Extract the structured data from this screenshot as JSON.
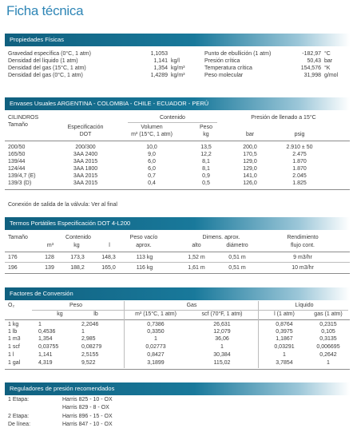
{
  "page_title": "Ficha técnica",
  "props": {
    "header": "Propiedades Físicas",
    "left": [
      {
        "label": "Gravedad específica (0°C, 1 atm)",
        "value": "1,1053",
        "unit": ""
      },
      {
        "label": "Densidad del líquido (1 atm)",
        "value": "1,141",
        "unit": "kg/l"
      },
      {
        "label": "Densidad del gas (15°C, 1 atm)",
        "value": "1,354",
        "unit": "kg/m³"
      },
      {
        "label": "Densidad del gas (0°C, 1 atm)",
        "value": "1,4289",
        "unit": "kg/m³"
      }
    ],
    "right": [
      {
        "label": "Punto de ebullición (1 atm)",
        "value": "-182,97",
        "unit": "°C"
      },
      {
        "label": "Presión crítica",
        "value": "50,43",
        "unit": "bar"
      },
      {
        "label": "Temperatura crítica",
        "value": "154,576",
        "unit": "°K"
      },
      {
        "label": "Peso molecular",
        "value": "31,998",
        "unit": "g/mol"
      }
    ]
  },
  "envases": {
    "header": "Envases Usuales ARGENTINA - COLOMBIA - CHILE - ECUADOR - PERÚ",
    "h_cilindros": "CILINDROS",
    "h_contenido": "Contenido",
    "h_presion": "Presión de llenado a 15°C",
    "h_tamano": "Tamaño",
    "h_espec": "Especificación",
    "h_dot": "DOT",
    "h_volumen": "Volumen",
    "h_volunit": "m³ (15°C, 1 atm)",
    "h_peso": "Peso",
    "h_kg": "kg",
    "h_bar": "bar",
    "h_psig": "psig",
    "rows": [
      [
        "200/50",
        "200/300",
        "10,0",
        "13,5",
        "200,0",
        "2.910 ± 50"
      ],
      [
        "165/50",
        "3AA 2400",
        "9,0",
        "12,2",
        "170,5",
        "2.475"
      ],
      [
        "139/44",
        "3AA 2015",
        "6,0",
        "8,1",
        "129,0",
        "1.870"
      ],
      [
        "124/44",
        "3AA 1800",
        "6,0",
        "8,1",
        "129,0",
        "1.870"
      ],
      [
        "139/4,7 (E)",
        "3AA 2015",
        "0,7",
        "0,9",
        "141,0",
        "2.045"
      ],
      [
        "139/3 (D)",
        "3AA 2015",
        "0,4",
        "0,5",
        "126,0",
        "1.825"
      ]
    ],
    "note": "Conexión de salida de la válvula: Ver al final"
  },
  "termos": {
    "header": "Termos Portátiles  Especificación DOT 4-L200",
    "h_tamano": "Tamaño",
    "h_contenido": "Contenido",
    "h_m3": "m³",
    "h_kg": "kg",
    "h_l": "l",
    "h_peso": "Peso vacío",
    "h_aprox": "aprox.",
    "h_dimens": "Dimens. aprox.",
    "h_alto": "alto",
    "h_diam": "diámetro",
    "h_rend": "Rendimiento",
    "h_flujo": "flujo cont.",
    "rows": [
      [
        "176",
        "128",
        "173,3",
        "148,3",
        "113 kg",
        "1,52 m",
        "0,51 m",
        "9 m3/hr"
      ],
      [
        "196",
        "139",
        "188,2",
        "165,0",
        "116 kg",
        "1,61 m",
        "0,51 m",
        "10 m3/hr"
      ]
    ]
  },
  "factores": {
    "header": "Factores de Conversión",
    "h_o2": "O₂",
    "h_peso": "Peso",
    "h_gas": "Gas",
    "h_liquido": "Líquido",
    "h_kg": "kg",
    "h_lb": "lb",
    "h_m3": "m³ (15°C, 1 atm)",
    "h_scf": "scf (70°F, 1 atm)",
    "h_l": "l (1 atm)",
    "h_gas1": "gas (1 atm)",
    "rows": [
      [
        "1 kg",
        "1",
        "2,2046",
        "0,7386",
        "26,631",
        "0,8764",
        "0,2315"
      ],
      [
        "1 lb",
        "0,4536",
        "1",
        "0,3350",
        "12,079",
        "0,3975",
        "0,105"
      ],
      [
        "1 m3",
        "1,354",
        "2,985",
        "1",
        "36,06",
        "1,1867",
        "0,3135"
      ],
      [
        "1 scf",
        "0,03755",
        "0,08279",
        "0,02773",
        "1",
        "0,03291",
        "0,006695"
      ],
      [
        "1 l",
        "1,141",
        "2,5155",
        "0,8427",
        "30,384",
        "1",
        "0,2642"
      ],
      [
        "1 gal",
        "4,319",
        "9,522",
        "3,1899",
        "115,02",
        "3,7854",
        "1"
      ]
    ]
  },
  "reguladores": {
    "header": "Reguladores de presión recomendados",
    "rows": [
      {
        "label": "1 Etapa:",
        "value": "Harris 825 - 10 - OX"
      },
      {
        "label": "",
        "value": "Harris 829 -   8 - OX"
      },
      {
        "label": "2 Etapa:",
        "value": "Harris 896 - 15 - OX"
      },
      {
        "label": "De línea:",
        "value": "Harris 847 - 10 - OX"
      }
    ]
  },
  "colors": {
    "accent": "#2f86b6",
    "bar": "#19799b"
  }
}
